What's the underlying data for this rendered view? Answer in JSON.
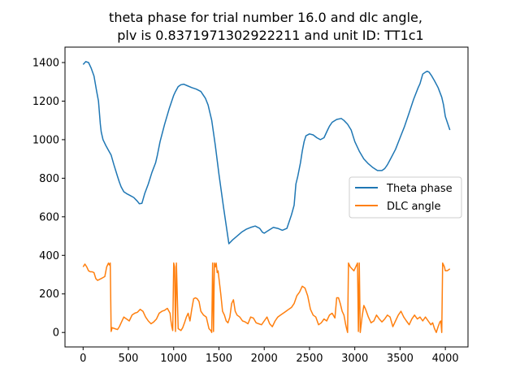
{
  "chart_data": {
    "type": "line",
    "title_line1": "theta phase for trial number 16.0 and dlc angle,",
    "title_line2": "plv is 0.8371971302922211 and unit ID: TT1c1",
    "xlabel": "",
    "ylabel": "",
    "xlim": [
      -200,
      4250
    ],
    "ylim": [
      -75,
      1480
    ],
    "xticks": [
      0,
      500,
      1000,
      1500,
      2000,
      2500,
      3000,
      3500,
      4000
    ],
    "yticks": [
      0,
      200,
      400,
      600,
      800,
      1000,
      1200,
      1400
    ],
    "grid": false,
    "legend_position": "center-right",
    "series": [
      {
        "name": "Theta phase",
        "color": "#1f77b4",
        "x": [
          0,
          30,
          60,
          90,
          120,
          150,
          170,
          190,
          200,
          220,
          250,
          280,
          310,
          340,
          360,
          380,
          400,
          420,
          450,
          480,
          520,
          560,
          600,
          620,
          650,
          680,
          720,
          760,
          800,
          820,
          850,
          900,
          950,
          1000,
          1020,
          1050,
          1080,
          1110,
          1150,
          1200,
          1250,
          1300,
          1350,
          1380,
          1420,
          1460,
          1500,
          1550,
          1610,
          1650,
          1700,
          1750,
          1800,
          1850,
          1900,
          1950,
          1980,
          2000,
          2050,
          2100,
          2150,
          2200,
          2250,
          2300,
          2330,
          2350,
          2370,
          2400,
          2420,
          2440,
          2460,
          2500,
          2540,
          2580,
          2620,
          2660,
          2700,
          2720,
          2750,
          2800,
          2850,
          2880,
          2920,
          2960,
          3000,
          3050,
          3100,
          3150,
          3200,
          3250,
          3300,
          3330,
          3360,
          3400,
          3450,
          3500,
          3550,
          3600,
          3650,
          3700,
          3720,
          3750,
          3780,
          3800,
          3820,
          3850,
          3880,
          3920,
          3960,
          3980,
          4000,
          4050
        ],
        "y": [
          1390,
          1405,
          1400,
          1370,
          1330,
          1250,
          1200,
          1080,
          1040,
          1000,
          970,
          945,
          920,
          870,
          840,
          810,
          780,
          755,
          730,
          720,
          710,
          700,
          680,
          668,
          670,
          720,
          770,
          830,
          880,
          920,
          990,
          1080,
          1160,
          1230,
          1250,
          1275,
          1285,
          1288,
          1280,
          1270,
          1262,
          1250,
          1215,
          1180,
          1100,
          970,
          820,
          650,
          460,
          480,
          500,
          520,
          535,
          545,
          552,
          540,
          520,
          515,
          530,
          545,
          540,
          530,
          540,
          610,
          660,
          770,
          810,
          880,
          940,
          990,
          1020,
          1030,
          1025,
          1010,
          1000,
          1010,
          1050,
          1070,
          1090,
          1105,
          1110,
          1100,
          1080,
          1050,
          990,
          940,
          900,
          875,
          855,
          840,
          840,
          850,
          870,
          905,
          950,
          1010,
          1070,
          1140,
          1210,
          1270,
          1290,
          1340,
          1350,
          1355,
          1350,
          1330,
          1305,
          1270,
          1220,
          1180,
          1120,
          1050
        ]
      },
      {
        "name": "DLC angle",
        "color": "#ff7f0e",
        "x": [
          0,
          20,
          40,
          60,
          80,
          100,
          120,
          140,
          160,
          180,
          200,
          220,
          240,
          260,
          280,
          290,
          300,
          310,
          320,
          350,
          380,
          400,
          420,
          450,
          480,
          510,
          540,
          570,
          600,
          630,
          660,
          690,
          720,
          750,
          780,
          810,
          840,
          870,
          900,
          930,
          960,
          970,
          980,
          990,
          1000,
          1010,
          1020,
          1030,
          1050,
          1080,
          1100,
          1120,
          1140,
          1160,
          1180,
          1200,
          1220,
          1240,
          1260,
          1280,
          1300,
          1330,
          1360,
          1390,
          1410,
          1420,
          1430,
          1440,
          1450,
          1460,
          1470,
          1480,
          1490,
          1500,
          1520,
          1540,
          1560,
          1580,
          1600,
          1620,
          1640,
          1660,
          1680,
          1700,
          1730,
          1760,
          1790,
          1820,
          1850,
          1880,
          1910,
          1940,
          1970,
          2000,
          2030,
          2060,
          2090,
          2120,
          2150,
          2180,
          2210,
          2240,
          2270,
          2300,
          2330,
          2360,
          2390,
          2420,
          2450,
          2480,
          2510,
          2540,
          2570,
          2600,
          2630,
          2660,
          2690,
          2720,
          2750,
          2780,
          2800,
          2820,
          2840,
          2860,
          2880,
          2900,
          2910,
          2920,
          2930,
          2950,
          2970,
          2990,
          3010,
          3030,
          3040,
          3050,
          3060,
          3080,
          3100,
          3120,
          3150,
          3180,
          3210,
          3240,
          3270,
          3300,
          3330,
          3360,
          3390,
          3420,
          3450,
          3480,
          3510,
          3540,
          3570,
          3600,
          3630,
          3660,
          3690,
          3720,
          3750,
          3780,
          3810,
          3840,
          3860,
          3880,
          3900,
          3920,
          3940,
          3950,
          3960,
          3970,
          3980,
          3990,
          4000,
          4020,
          4050
        ],
        "y": [
          340,
          355,
          340,
          320,
          315,
          315,
          310,
          280,
          270,
          275,
          280,
          285,
          290,
          340,
          360,
          350,
          360,
          5,
          25,
          20,
          15,
          30,
          50,
          80,
          70,
          60,
          90,
          100,
          105,
          120,
          110,
          80,
          60,
          45,
          55,
          70,
          100,
          110,
          115,
          125,
          100,
          60,
          30,
          10,
          360,
          340,
          5,
          360,
          20,
          10,
          25,
          50,
          80,
          100,
          60,
          120,
          175,
          180,
          175,
          160,
          110,
          90,
          80,
          20,
          10,
          0,
          360,
          5,
          360,
          340,
          360,
          310,
          320,
          280,
          200,
          110,
          90,
          60,
          50,
          80,
          150,
          170,
          110,
          90,
          80,
          60,
          55,
          45,
          80,
          75,
          50,
          45,
          40,
          60,
          80,
          45,
          30,
          60,
          80,
          90,
          100,
          110,
          120,
          130,
          150,
          190,
          210,
          240,
          230,
          190,
          120,
          90,
          80,
          40,
          50,
          70,
          60,
          90,
          100,
          75,
          180,
          180,
          150,
          110,
          90,
          40,
          20,
          0,
          360,
          340,
          330,
          320,
          340,
          360,
          5,
          360,
          0,
          80,
          140,
          120,
          80,
          50,
          60,
          90,
          70,
          55,
          70,
          90,
          80,
          30,
          60,
          90,
          110,
          80,
          60,
          40,
          70,
          90,
          70,
          80,
          60,
          80,
          60,
          40,
          50,
          20,
          0,
          30,
          55,
          60,
          0,
          360,
          350,
          340,
          320,
          320,
          330
        ]
      }
    ]
  }
}
